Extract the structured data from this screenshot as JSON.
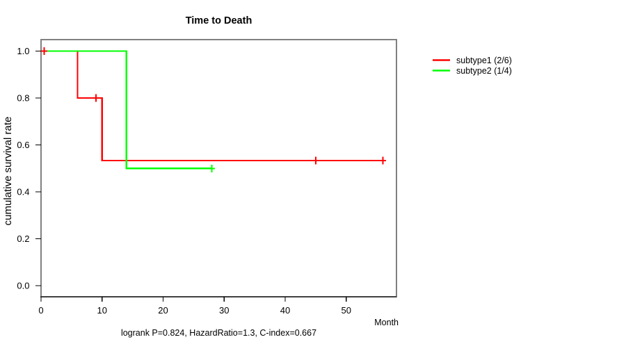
{
  "chart_data": {
    "type": "line",
    "subtype": "kaplan-meier-step-survival",
    "title": "Time to Death",
    "xlabel": "Month",
    "ylabel": "cumulative survival rate",
    "annotation": "logrank P=0.824, HazardRatio=1.3, C-index=0.667",
    "xlim": [
      0,
      58
    ],
    "ylim": [
      0.0,
      1.0
    ],
    "grid": false,
    "legend_position": "right-outside",
    "xticks": {
      "values": [
        0,
        10,
        20,
        30,
        40,
        50
      ],
      "labels": [
        "0",
        "10",
        "20",
        "30",
        "40",
        "50"
      ]
    },
    "yticks": {
      "values": [
        0.0,
        0.2,
        0.4,
        0.6,
        0.8,
        1.0
      ],
      "labels": [
        "0.0",
        "0.2",
        "0.4",
        "0.6",
        "0.8",
        "1.0"
      ]
    },
    "series": [
      {
        "name": "subtype1 (2/6)",
        "color": "#ff0000",
        "points": [
          [
            0,
            1.0
          ],
          [
            6,
            1.0
          ],
          [
            6,
            0.8
          ],
          [
            10,
            0.8
          ],
          [
            10,
            0.533
          ],
          [
            56,
            0.533
          ]
        ],
        "censor_marks": [
          [
            0.5,
            1.0
          ],
          [
            9,
            0.8
          ],
          [
            45,
            0.533
          ],
          [
            56,
            0.533
          ]
        ]
      },
      {
        "name": "subtype2 (1/4)",
        "color": "#00ff00",
        "points": [
          [
            0,
            1.0
          ],
          [
            14,
            1.0
          ],
          [
            14,
            0.5
          ],
          [
            28,
            0.5
          ]
        ],
        "censor_marks": [
          [
            28,
            0.5
          ]
        ]
      }
    ],
    "colors": {
      "box": "#808080",
      "axis": "#000000",
      "text": "#000000",
      "background": "#ffffff"
    }
  }
}
